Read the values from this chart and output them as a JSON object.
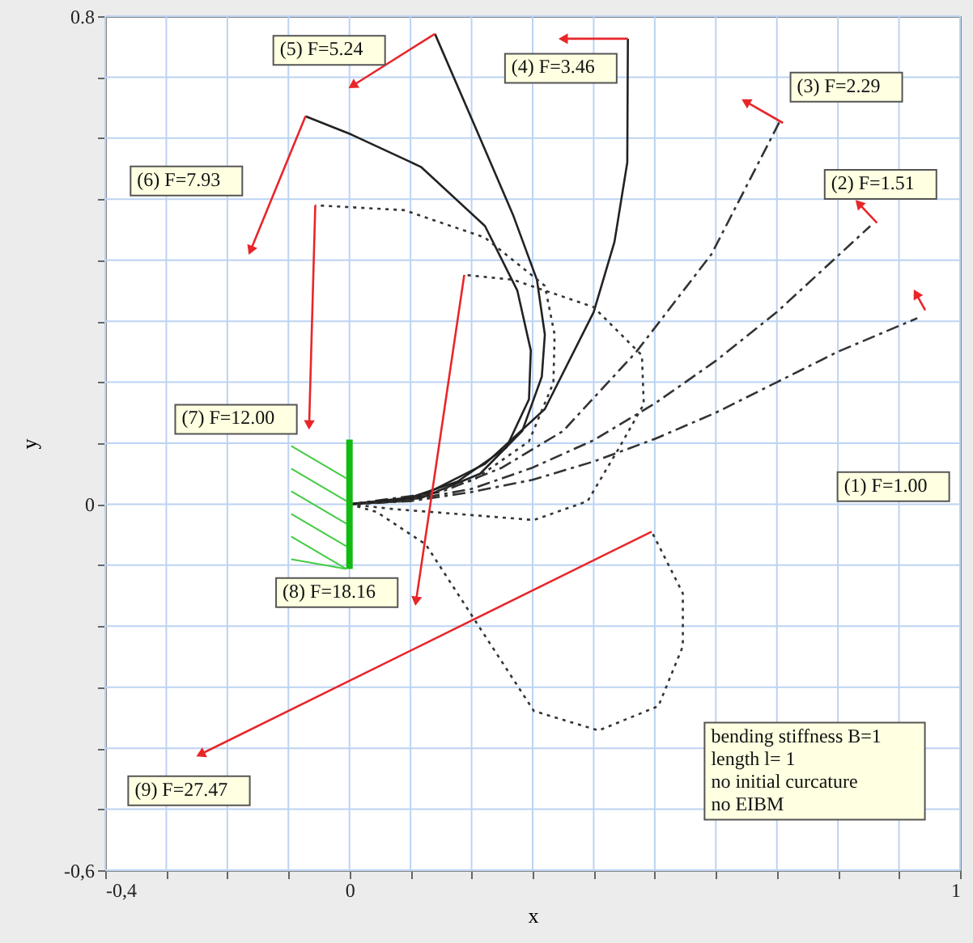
{
  "chart_data": {
    "type": "line",
    "xlabel": "x",
    "ylabel": "y",
    "xlim": [
      -0.4,
      1
    ],
    "ylim": [
      -0.6,
      0.8
    ],
    "xticks": [
      {
        "value": -0.4,
        "label": "-0,4"
      },
      {
        "value": -0.3,
        "label": null
      },
      {
        "value": -0.2,
        "label": null
      },
      {
        "value": -0.1,
        "label": null
      },
      0,
      {
        "value": 0.1,
        "label": null
      },
      {
        "value": 0.2,
        "label": null
      },
      {
        "value": 0.3,
        "label": null
      },
      {
        "value": 0.4,
        "label": null
      },
      {
        "value": 0.5,
        "label": null
      },
      {
        "value": 0.6,
        "label": null
      },
      {
        "value": 0.7,
        "label": null
      },
      {
        "value": 0.8,
        "label": null
      },
      {
        "value": 0.9,
        "label": null
      },
      1
    ],
    "yticks": [
      {
        "value": -0.6,
        "label": "-0,6"
      },
      {
        "value": -0.5,
        "label": null
      },
      {
        "value": -0.4,
        "label": null
      },
      {
        "value": -0.3,
        "label": null
      },
      {
        "value": -0.2,
        "label": null
      },
      {
        "value": -0.1,
        "label": null
      },
      0,
      {
        "value": 0.1,
        "label": null
      },
      {
        "value": 0.2,
        "label": null
      },
      {
        "value": 0.3,
        "label": null
      },
      {
        "value": 0.4,
        "label": null
      },
      {
        "value": 0.5,
        "label": null
      },
      {
        "value": 0.6,
        "label": null
      },
      {
        "value": 0.7,
        "label": null
      },
      0.8
    ],
    "grid": true,
    "series": [
      {
        "color": "#333333",
        "line_style": "dashed",
        "x": [
          0,
          0.1,
          0.2,
          0.3,
          0.4,
          0.5,
          0.6,
          0.7,
          0.8,
          0.93
        ],
        "values": [
          0,
          0.005,
          0.02,
          0.04,
          0.07,
          0.107,
          0.15,
          0.2,
          0.25,
          0.305
        ]
      },
      {
        "color": "#333333",
        "line_style": "dashed",
        "x": [
          0,
          0.1,
          0.2,
          0.3,
          0.4,
          0.5,
          0.6,
          0.7,
          0.853
        ],
        "values": [
          0,
          0.007,
          0.025,
          0.06,
          0.105,
          0.165,
          0.235,
          0.315,
          0.456
        ]
      },
      {
        "color": "#333333",
        "line_style": "dashed",
        "x": [
          0,
          0.15,
          0.25,
          0.35,
          0.47,
          0.593,
          0.705
        ],
        "values": [
          0,
          0.02,
          0.06,
          0.12,
          0.25,
          0.41,
          0.628
        ]
      },
      {
        "color": "#222222",
        "line_style": "solid",
        "x": [
          0,
          0.117,
          0.222,
          0.32,
          0.4,
          0.434,
          0.455,
          0.456
        ],
        "values": [
          0,
          0.013,
          0.066,
          0.156,
          0.315,
          0.43,
          0.56,
          0.763
        ]
      },
      {
        "color": "#222222",
        "line_style": "solid",
        "x": [
          0,
          0.117,
          0.214,
          0.283,
          0.315,
          0.32,
          0.307,
          0.268,
          0.204,
          0.14
        ],
        "values": [
          0,
          0.01,
          0.05,
          0.12,
          0.209,
          0.278,
          0.368,
          0.474,
          0.623,
          0.771
        ]
      },
      {
        "color": "#222222",
        "line_style": "solid",
        "x": [
          0,
          0.082,
          0.177,
          0.257,
          0.294,
          0.297,
          0.275,
          0.222,
          0.117,
          0.003,
          -0.072
        ],
        "values": [
          0,
          0.005,
          0.037,
          0.093,
          0.172,
          0.252,
          0.35,
          0.456,
          0.553,
          0.606,
          0.636
        ]
      },
      {
        "color": "#333333",
        "line_style": "dotted",
        "x": [
          0,
          0.09,
          0.204,
          0.294,
          0.334,
          0.336,
          0.32,
          0.222,
          0.09,
          -0.056
        ],
        "values": [
          0,
          0.005,
          0.04,
          0.103,
          0.199,
          0.278,
          0.358,
          0.437,
          0.482,
          0.49
        ]
      },
      {
        "color": "#333333",
        "line_style": "dotted",
        "x": [
          0,
          0.072,
          0.177,
          0.302,
          0.39,
          0.442,
          0.482,
          0.479,
          0.4,
          0.268,
          0.188
        ],
        "values": [
          0,
          -0.008,
          -0.016,
          -0.026,
          0.005,
          0.093,
          0.164,
          0.244,
          0.323,
          0.368,
          0.376
        ]
      },
      {
        "color": "#333333",
        "line_style": "dotted",
        "x": [
          0,
          0.045,
          0.125,
          0.204,
          0.302,
          0.408,
          0.506,
          0.546,
          0.546,
          0.495
        ],
        "values": [
          0,
          -0.013,
          -0.066,
          -0.188,
          -0.339,
          -0.371,
          -0.331,
          -0.233,
          -0.146,
          -0.045
        ]
      },
      {
        "color": "#e8262a",
        "line_style": "solid",
        "marker": "triangle",
        "x": [
          0.943,
          0.928
        ],
        "values": [
          0.318,
          0.345
        ]
      },
      {
        "color": "#e8262a",
        "line_style": "solid",
        "marker": "triangle",
        "x": [
          0.864,
          0.834
        ],
        "values": [
          0.461,
          0.493
        ]
      },
      {
        "color": "#e8262a",
        "line_style": "solid",
        "marker": "triangle",
        "x": [
          0.71,
          0.649
        ],
        "values": [
          0.625,
          0.66
        ]
      },
      {
        "color": "#e8262a",
        "line_style": "solid",
        "marker": "triangle",
        "x": [
          0.456,
          0.35
        ],
        "values": [
          0.763,
          0.763
        ]
      },
      {
        "color": "#e8262a",
        "line_style": "solid",
        "marker": "triangle",
        "x": [
          0.14,
          0.005
        ],
        "values": [
          0.771,
          0.686
        ]
      },
      {
        "color": "#e8262a",
        "line_style": "solid",
        "marker": "triangle",
        "x": [
          -0.072,
          -0.162
        ],
        "values": [
          0.636,
          0.416
        ]
      },
      {
        "color": "#e8262a",
        "line_style": "solid",
        "marker": "triangle",
        "x": [
          -0.056,
          -0.066
        ],
        "values": [
          0.49,
          0.13
        ]
      },
      {
        "color": "#e8262a",
        "line_style": "solid",
        "marker": "triangle",
        "x": [
          0.188,
          0.109
        ],
        "values": [
          0.376,
          -0.159
        ]
      },
      {
        "color": "#e8262a",
        "line_style": "solid",
        "marker": "triangle",
        "x": [
          0.495,
          -0.244
        ],
        "values": [
          -0.045,
          -0.41
        ]
      }
    ],
    "annotations": [
      "(1) F=1.00",
      "(2) F=1.51",
      "(3) F=2.29",
      "(4) F=3.46",
      "(5) F=5.24",
      "(6) F=7.93",
      "(7) F=12.00",
      "(8) F=18.16",
      "(9) F=27.47",
      "bending stiffness B=1\nlength l= 1\nno initial curcature\nno EIBM"
    ]
  }
}
